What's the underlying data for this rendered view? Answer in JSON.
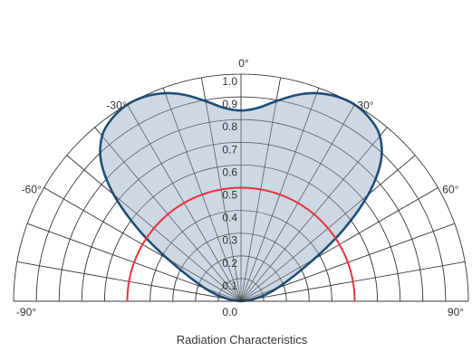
{
  "chart_data": {
    "type": "polar",
    "title": "Radiation Characteristics",
    "angle_range_deg": [
      -90,
      90
    ],
    "angle_ticks": [
      -90,
      -60,
      -30,
      0,
      30,
      60,
      90
    ],
    "angle_tick_labels": [
      "-90°",
      "-60°",
      "-30°",
      "0°",
      "30°",
      "60°",
      "90°"
    ],
    "angle_grid_step_deg": 10,
    "radial_range": [
      0,
      1.0
    ],
    "radial_ticks": [
      0.1,
      0.2,
      0.3,
      0.4,
      0.5,
      0.6,
      0.7,
      0.8,
      0.9,
      1.0
    ],
    "radial_tick_labels": [
      "0.1",
      "0.2",
      "0.3",
      "0.4",
      "0.5",
      "0.6",
      "0.7",
      "0.8",
      "0.9",
      "1.0"
    ],
    "origin_label": "0.0",
    "grid": true,
    "series": [
      {
        "color": "#1f4e79",
        "fill": "#bccbd9",
        "points": [
          {
            "angle": -90,
            "r": 0.0
          },
          {
            "angle": -80,
            "r": 0.06
          },
          {
            "angle": -70,
            "r": 0.17
          },
          {
            "angle": -60,
            "r": 0.37
          },
          {
            "angle": -55,
            "r": 0.55
          },
          {
            "angle": -50,
            "r": 0.73
          },
          {
            "angle": -45,
            "r": 0.87
          },
          {
            "angle": -40,
            "r": 0.95
          },
          {
            "angle": -35,
            "r": 0.985
          },
          {
            "angle": -30,
            "r": 1.0
          },
          {
            "angle": -25,
            "r": 0.995
          },
          {
            "angle": -20,
            "r": 0.975
          },
          {
            "angle": -15,
            "r": 0.94
          },
          {
            "angle": -10,
            "r": 0.895
          },
          {
            "angle": -5,
            "r": 0.855
          },
          {
            "angle": 0,
            "r": 0.84
          },
          {
            "angle": 5,
            "r": 0.855
          },
          {
            "angle": 10,
            "r": 0.895
          },
          {
            "angle": 15,
            "r": 0.94
          },
          {
            "angle": 20,
            "r": 0.975
          },
          {
            "angle": 25,
            "r": 0.995
          },
          {
            "angle": 30,
            "r": 1.0
          },
          {
            "angle": 35,
            "r": 0.985
          },
          {
            "angle": 40,
            "r": 0.95
          },
          {
            "angle": 45,
            "r": 0.87
          },
          {
            "angle": 50,
            "r": 0.73
          },
          {
            "angle": 55,
            "r": 0.55
          },
          {
            "angle": 60,
            "r": 0.37
          },
          {
            "angle": 70,
            "r": 0.17
          },
          {
            "angle": 80,
            "r": 0.06
          },
          {
            "angle": 90,
            "r": 0.0
          }
        ]
      }
    ],
    "reference_circle": {
      "r": 0.5,
      "color": "#e8323c"
    }
  }
}
